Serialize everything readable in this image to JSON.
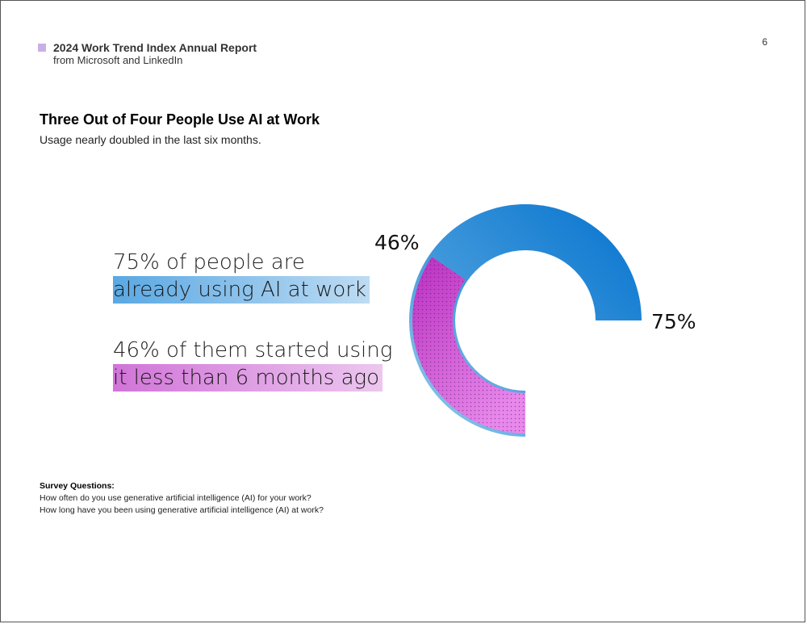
{
  "header": {
    "report_title": "2024 Work Trend Index Annual Report",
    "report_source": "from Microsoft and LinkedIn",
    "page_number": "6",
    "swatch_color": "#c8b0e6"
  },
  "main": {
    "title": "Three Out of Four People Use AI at Work",
    "subtitle": "Usage nearly doubled in the last six months."
  },
  "stats": [
    {
      "line1": "75% of people are",
      "line2": "already using AI at work",
      "highlight_color": "#5aa8e3"
    },
    {
      "line1": "46% of them started using",
      "line2": "it less than 6 months ago",
      "highlight_color": "#d174d8"
    }
  ],
  "chart_data": {
    "type": "pie",
    "style": "donut",
    "title": "",
    "slices": [
      {
        "value": 75,
        "label": "75%",
        "color": "#0b78d0"
      },
      {
        "value": 25,
        "label": "",
        "color": "#e6e6e6"
      }
    ],
    "inner_slice": {
      "value": 46,
      "of_total_pct": 75,
      "label": "46%",
      "color": "#c535c6",
      "pattern": "dotted"
    }
  },
  "survey": {
    "heading": "Survey Questions:",
    "questions": [
      "How often do you use generative artificial intelligence (AI) for your work?",
      "How long have you been using generative artificial intelligence (AI) at work?"
    ]
  }
}
